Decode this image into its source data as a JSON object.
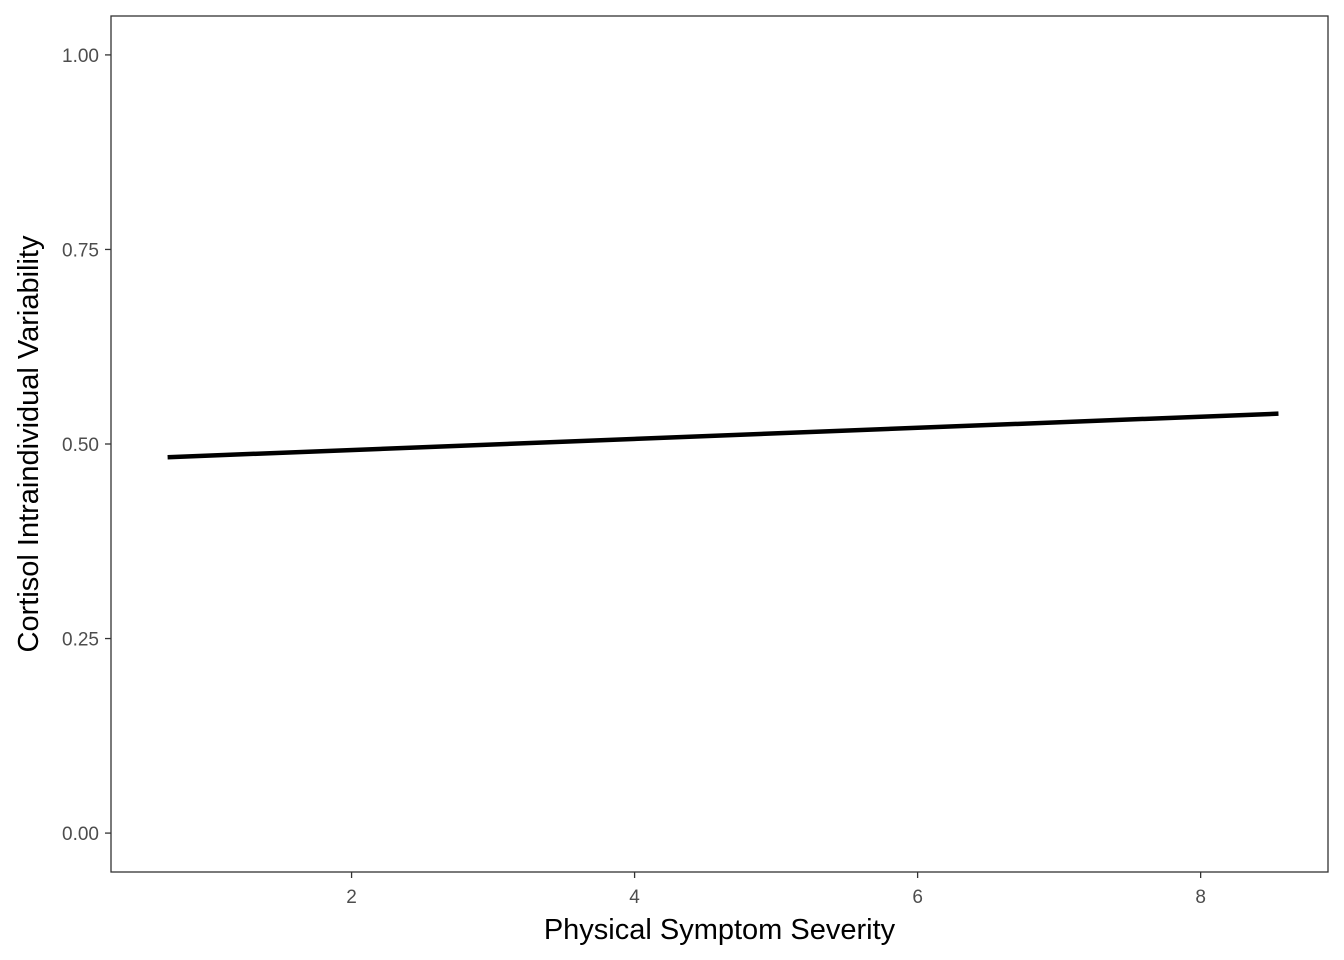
{
  "chart_data": {
    "type": "line",
    "title": "",
    "xlabel": "Physical Symptom Severity",
    "ylabel": "Cortisol Intraindividual Variability",
    "xlim": [
      0.3,
      8.9
    ],
    "ylim": [
      -0.05,
      1.05
    ],
    "x_ticks": [
      2,
      4,
      6,
      8
    ],
    "x_tick_labels": [
      "2",
      "4",
      "6",
      "8"
    ],
    "y_ticks": [
      0,
      0.25,
      0.5,
      0.75,
      1
    ],
    "y_tick_labels": [
      "0.00",
      "0.25",
      "0.50",
      "0.75",
      "1.00"
    ],
    "grid": false,
    "series": [
      {
        "x": [
          0.7,
          8.55
        ],
        "y": [
          0.483,
          0.539
        ],
        "color": "#000000"
      }
    ]
  }
}
